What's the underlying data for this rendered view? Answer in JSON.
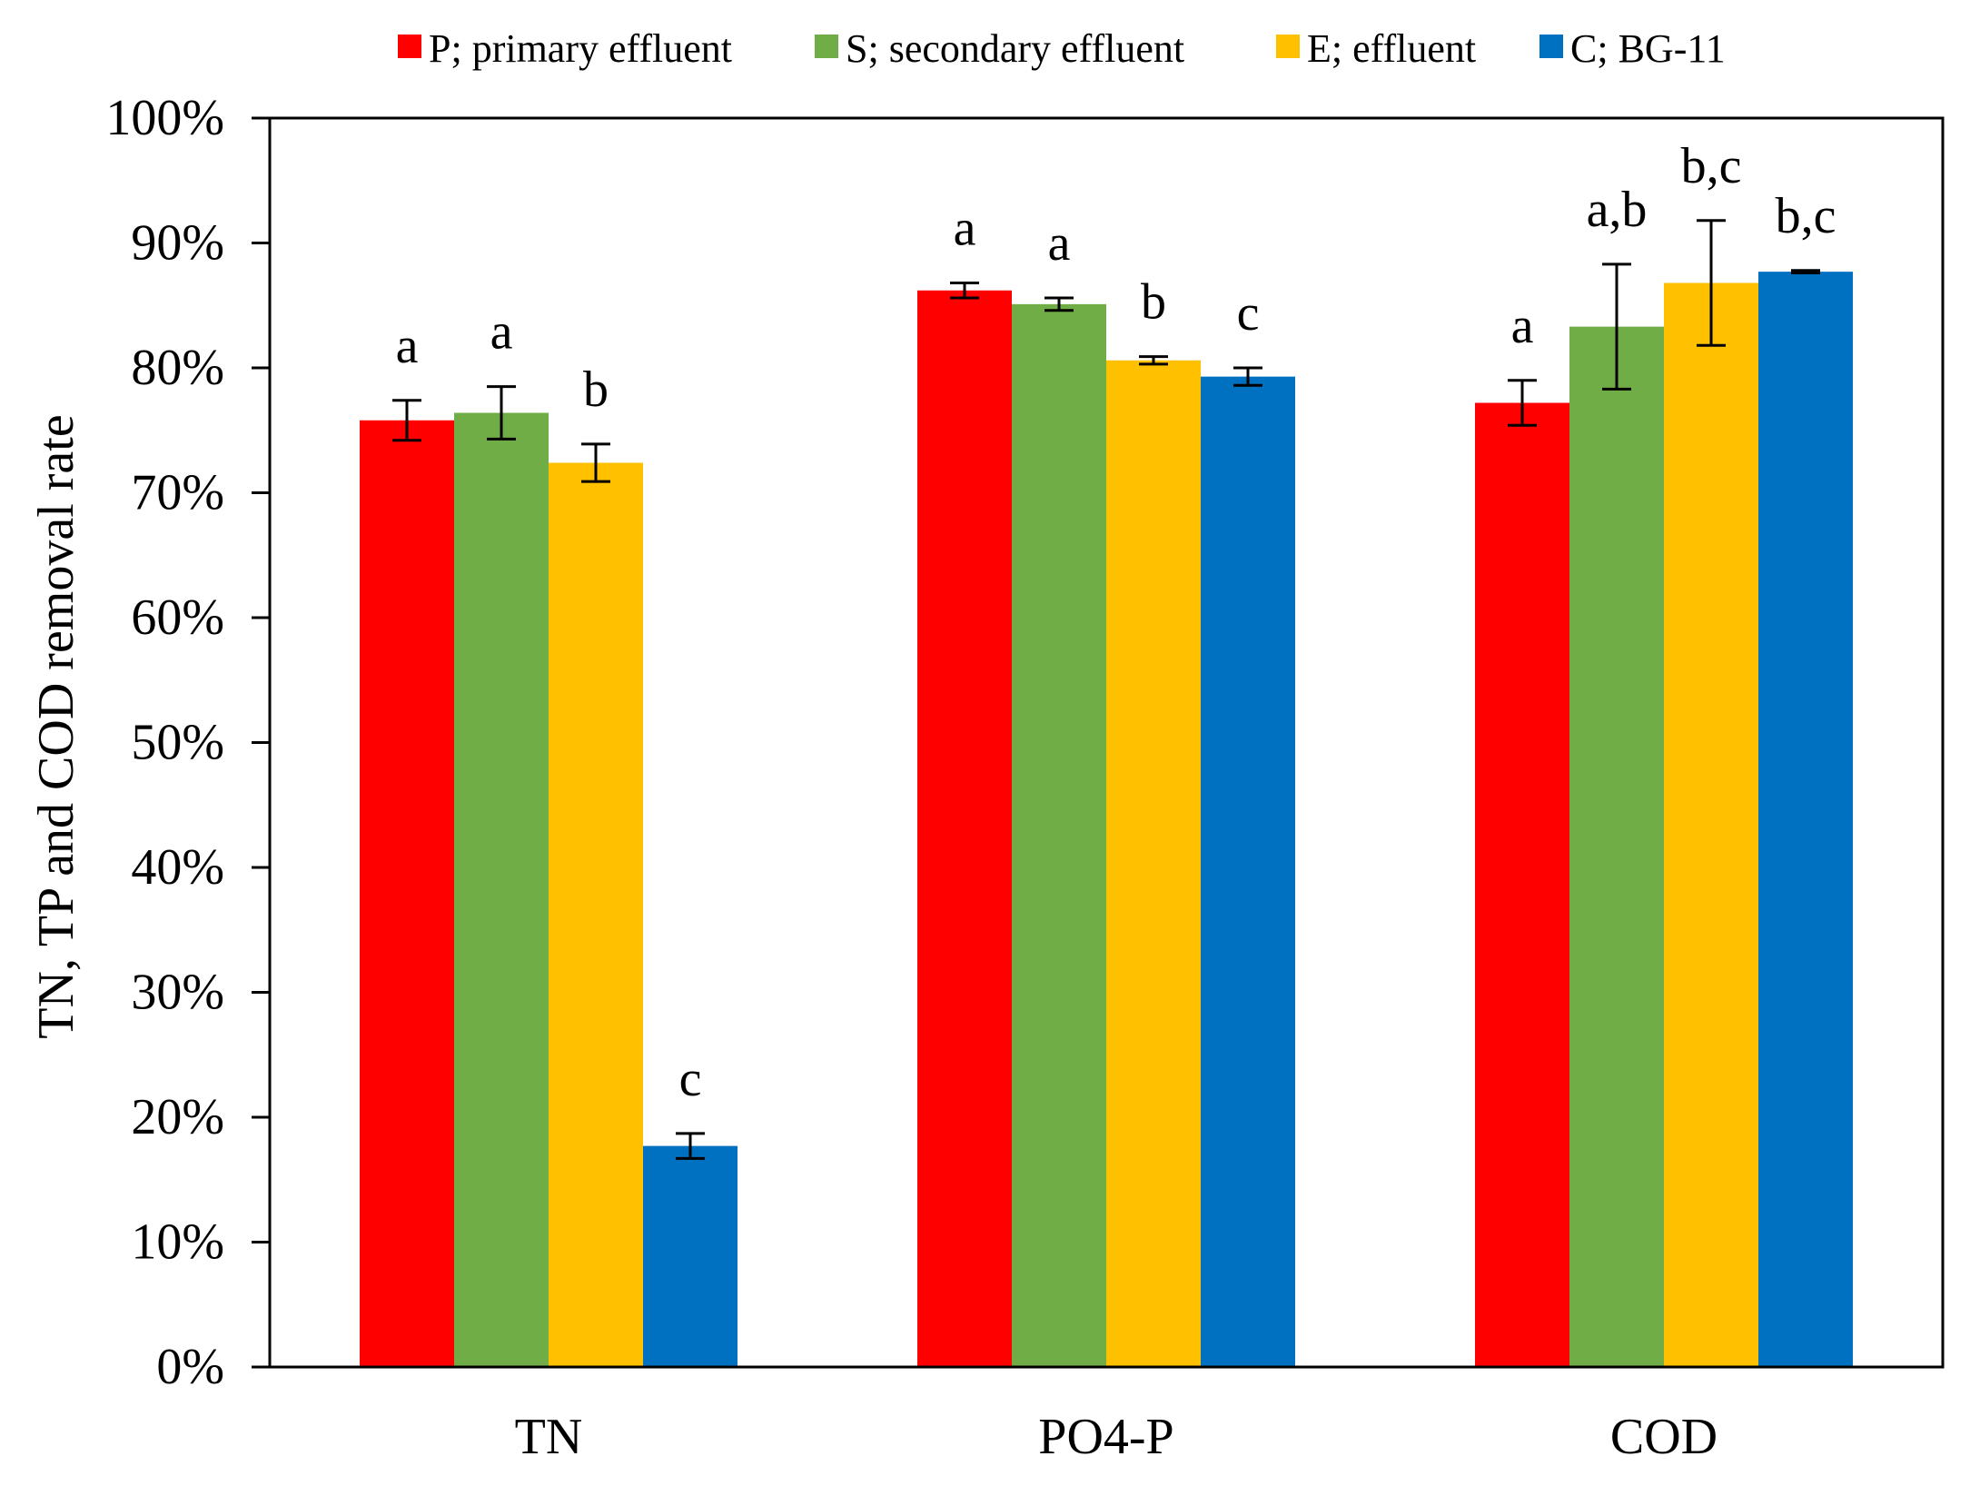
{
  "chart_data": {
    "type": "bar",
    "title": "",
    "xlabel": "",
    "ylabel": "TN, TP and COD removal rate",
    "ylim": [
      0,
      100
    ],
    "y_tick_values": [
      0,
      10,
      20,
      30,
      40,
      50,
      60,
      70,
      80,
      90,
      100
    ],
    "y_tick_labels": [
      "0%",
      "10%",
      "20%",
      "30%",
      "40%",
      "50%",
      "60%",
      "70%",
      "80%",
      "90%",
      "100%"
    ],
    "grid": false,
    "legend_position": "top",
    "categories": [
      "TN",
      "PO4-P",
      "COD"
    ],
    "series": [
      {
        "name": "P; primary effluent",
        "color": "#ff0000",
        "values": [
          75.8,
          86.2,
          77.2
        ],
        "errors": [
          1.6,
          0.6,
          1.8
        ],
        "letters": [
          "a",
          "a",
          "a"
        ]
      },
      {
        "name": "S; secondary effluent",
        "color": "#70ad47",
        "values": [
          76.4,
          85.1,
          83.3
        ],
        "errors": [
          2.1,
          0.5,
          5.0
        ],
        "letters": [
          "a",
          "a",
          "a,b"
        ]
      },
      {
        "name": "E; effluent",
        "color": "#ffc000",
        "values": [
          72.4,
          80.6,
          86.8
        ],
        "errors": [
          1.5,
          0.3,
          5.0
        ],
        "letters": [
          "b",
          "b",
          "b,c"
        ]
      },
      {
        "name": "C; BG-11",
        "color": "#0070c0",
        "values": [
          17.7,
          79.3,
          87.7
        ],
        "errors": [
          1.0,
          0.7,
          0.1
        ],
        "letters": [
          "c",
          "c",
          "b,c"
        ]
      }
    ]
  }
}
